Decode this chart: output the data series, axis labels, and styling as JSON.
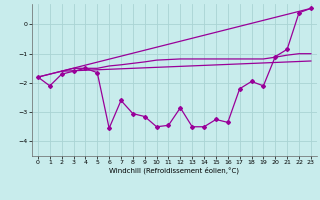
{
  "background_color": "#c8ecec",
  "line_color": "#990099",
  "grid_color": "#aad4d4",
  "xlabel": "Windchill (Refroidissement éolien,°C)",
  "xlim": [
    -0.5,
    23.5
  ],
  "ylim": [
    -4.5,
    0.7
  ],
  "yticks": [
    0,
    -1,
    -2,
    -3,
    -4
  ],
  "xticks": [
    0,
    1,
    2,
    3,
    4,
    5,
    6,
    7,
    8,
    9,
    10,
    11,
    12,
    13,
    14,
    15,
    16,
    17,
    18,
    19,
    20,
    21,
    22,
    23
  ],
  "line1_x": [
    0,
    1,
    2,
    3,
    4,
    5,
    6,
    7,
    8,
    9,
    10,
    11,
    12,
    13,
    14,
    15,
    16,
    17,
    18,
    19,
    20,
    21,
    22,
    23
  ],
  "line1_y": [
    -1.8,
    -2.1,
    -1.7,
    -1.6,
    -1.5,
    -1.65,
    -3.55,
    -2.6,
    -3.05,
    -3.15,
    -3.5,
    -3.45,
    -2.85,
    -3.5,
    -3.5,
    -3.25,
    -3.35,
    -2.2,
    -1.95,
    -2.1,
    -1.1,
    -0.85,
    0.4,
    0.55
  ],
  "line2_x": [
    0,
    2,
    3,
    4,
    5,
    6,
    7,
    8,
    9,
    10,
    11,
    12,
    13,
    14,
    15,
    16,
    17,
    18,
    19,
    20,
    21,
    22,
    23
  ],
  "line2_y": [
    -1.8,
    -1.6,
    -1.5,
    -1.5,
    -1.5,
    -1.42,
    -1.38,
    -1.33,
    -1.28,
    -1.22,
    -1.2,
    -1.18,
    -1.18,
    -1.18,
    -1.18,
    -1.18,
    -1.18,
    -1.18,
    -1.18,
    -1.12,
    -1.05,
    -1.0,
    -1.0
  ],
  "line3_x": [
    0,
    23
  ],
  "line3_y": [
    -1.8,
    0.55
  ],
  "line4_x": [
    2,
    23
  ],
  "line4_y": [
    -1.6,
    -1.25
  ]
}
